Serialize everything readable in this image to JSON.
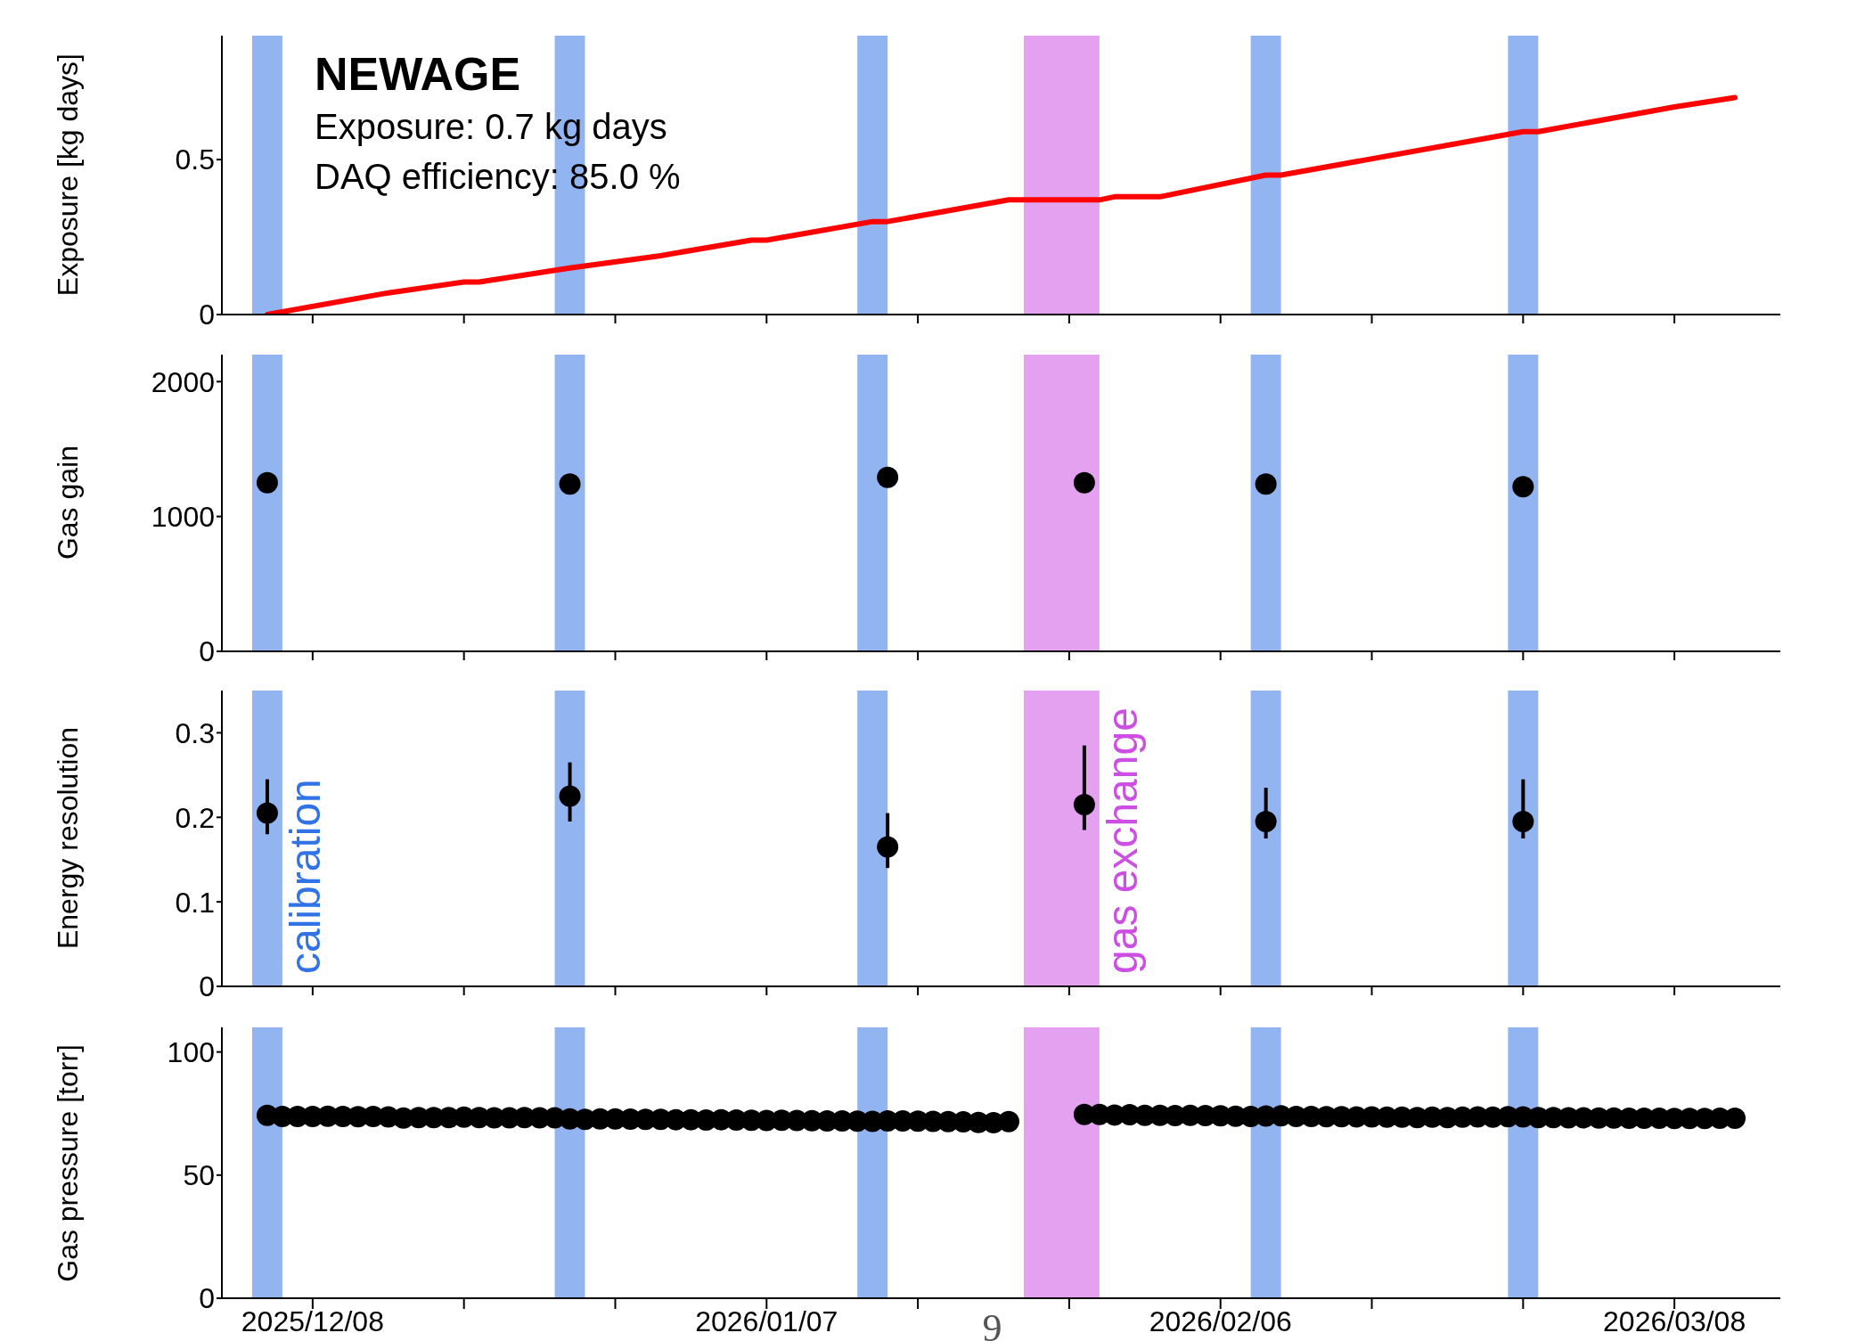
{
  "chart_data": [
    {
      "type": "line",
      "title": "NEWAGE",
      "annotations": [
        "Exposure: 0.7 kg days",
        "DAQ efficiency: 85.0 %"
      ],
      "ylabel": "Exposure [kg days]",
      "tick_labels": "y",
      "x": [
        "2025-12-05",
        "2025-12-13",
        "2025-12-18",
        "2025-12-19",
        "2025-12-25",
        "2025-12-31",
        "2026-01-06",
        "2026-01-07",
        "2026-01-14",
        "2026-01-15",
        "2026-01-23",
        "2026-01-29",
        "2026-01-30",
        "2026-02-02",
        "2026-02-09",
        "2026-02-10",
        "2026-02-26",
        "2026-02-27",
        "2026-03-08",
        "2026-03-12"
      ],
      "values": [
        0,
        0.07,
        0.105,
        0.105,
        0.15,
        0.19,
        0.24,
        0.24,
        0.3,
        0.3,
        0.37,
        0.37,
        0.38,
        0.38,
        0.45,
        0.45,
        0.59,
        0.59,
        0.67,
        0.7
      ],
      "color": "#ff0000",
      "line_style": "solid",
      "marker": "none",
      "xlim": [
        "2025-12-02",
        "2026-03-15"
      ],
      "xticks": [
        {
          "value": "2025-12-08",
          "label": null
        },
        {
          "value": "2025-12-18",
          "label": null
        },
        {
          "value": "2025-12-28",
          "label": null
        },
        {
          "value": "2026-01-07",
          "label": null
        },
        {
          "value": "2026-01-17",
          "label": null
        },
        {
          "value": "2026-01-27",
          "label": null
        },
        {
          "value": "2026-02-06",
          "label": null
        },
        {
          "value": "2026-02-16",
          "label": null
        },
        {
          "value": "2026-02-26",
          "label": null
        },
        {
          "value": "2026-03-08",
          "label": null
        }
      ],
      "ylim": [
        0,
        0.9
      ],
      "yticks": [
        0,
        0.5
      ],
      "bands": [
        {
          "axis": "x",
          "from": "2025-12-04",
          "to": "2025-12-06",
          "color": "#3173e6"
        },
        {
          "axis": "x",
          "from": "2025-12-24",
          "to": "2025-12-26",
          "color": "#3173e6"
        },
        {
          "axis": "x",
          "from": "2026-01-13",
          "to": "2026-01-15",
          "color": "#3173e6"
        },
        {
          "axis": "x",
          "from": "2026-01-24",
          "to": "2026-01-29",
          "color": "#cc4ee2"
        },
        {
          "axis": "x",
          "from": "2026-02-08",
          "to": "2026-02-10",
          "color": "#3173e6"
        },
        {
          "axis": "x",
          "from": "2026-02-25",
          "to": "2026-02-27",
          "color": "#3173e6"
        }
      ]
    },
    {
      "type": "scatter",
      "ylabel": "Gas gain",
      "tick_labels": "y",
      "marker": "circle",
      "color": "#000000",
      "x": [
        "2025-12-05",
        "2025-12-25",
        "2026-01-15",
        "2026-01-28",
        "2026-02-09",
        "2026-02-26"
      ],
      "values": [
        1250,
        1240,
        1290,
        1250,
        1240,
        1220
      ],
      "xlim": [
        "2025-12-02",
        "2026-03-15"
      ],
      "xticks": [
        {
          "value": "2025-12-08",
          "label": null
        },
        {
          "value": "2025-12-18",
          "label": null
        },
        {
          "value": "2025-12-28",
          "label": null
        },
        {
          "value": "2026-01-07",
          "label": null
        },
        {
          "value": "2026-01-17",
          "label": null
        },
        {
          "value": "2026-01-27",
          "label": null
        },
        {
          "value": "2026-02-06",
          "label": null
        },
        {
          "value": "2026-02-16",
          "label": null
        },
        {
          "value": "2026-02-26",
          "label": null
        },
        {
          "value": "2026-03-08",
          "label": null
        }
      ],
      "ylim": [
        0,
        2200
      ],
      "yticks": [
        0,
        1000,
        2000
      ],
      "bands": [
        {
          "axis": "x",
          "from": "2025-12-04",
          "to": "2025-12-06",
          "color": "#3173e6"
        },
        {
          "axis": "x",
          "from": "2025-12-24",
          "to": "2025-12-26",
          "color": "#3173e6"
        },
        {
          "axis": "x",
          "from": "2026-01-13",
          "to": "2026-01-15",
          "color": "#3173e6"
        },
        {
          "axis": "x",
          "from": "2026-01-24",
          "to": "2026-01-29",
          "color": "#cc4ee2"
        },
        {
          "axis": "x",
          "from": "2026-02-08",
          "to": "2026-02-10",
          "color": "#3173e6"
        },
        {
          "axis": "x",
          "from": "2026-02-25",
          "to": "2026-02-27",
          "color": "#3173e6"
        }
      ]
    },
    {
      "type": "scatter",
      "ylabel": "Energy resolution",
      "tick_labels": "y",
      "marker": "circle",
      "color": "#000000",
      "x": [
        "2025-12-05",
        "2025-12-25",
        "2026-01-15",
        "2026-01-28",
        "2026-02-09",
        "2026-02-26"
      ],
      "values": [
        0.205,
        0.225,
        0.165,
        0.215,
        0.195,
        0.195
      ],
      "errors": [
        [
          0.18,
          0.245
        ],
        [
          0.195,
          0.265
        ],
        [
          0.14,
          0.205
        ],
        [
          0.185,
          0.285
        ],
        [
          0.175,
          0.235
        ],
        [
          0.175,
          0.245
        ]
      ],
      "xlim": [
        "2025-12-02",
        "2026-03-15"
      ],
      "xticks": [
        {
          "value": "2025-12-08",
          "label": null
        },
        {
          "value": "2025-12-18",
          "label": null
        },
        {
          "value": "2025-12-28",
          "label": null
        },
        {
          "value": "2026-01-07",
          "label": null
        },
        {
          "value": "2026-01-17",
          "label": null
        },
        {
          "value": "2026-01-27",
          "label": null
        },
        {
          "value": "2026-02-06",
          "label": null
        },
        {
          "value": "2026-02-16",
          "label": null
        },
        {
          "value": "2026-02-26",
          "label": null
        },
        {
          "value": "2026-03-08",
          "label": null
        }
      ],
      "ylim": [
        0,
        0.35
      ],
      "yticks": [
        0,
        0.1,
        0.2,
        0.3
      ],
      "bands": [
        {
          "axis": "x",
          "from": "2025-12-04",
          "to": "2025-12-06",
          "color": "#3173e6",
          "label": "calibration"
        },
        {
          "axis": "x",
          "from": "2025-12-24",
          "to": "2025-12-26",
          "color": "#3173e6"
        },
        {
          "axis": "x",
          "from": "2026-01-13",
          "to": "2026-01-15",
          "color": "#3173e6"
        },
        {
          "axis": "x",
          "from": "2026-01-24",
          "to": "2026-01-29",
          "color": "#cc4ee2",
          "label": "gas exchange"
        },
        {
          "axis": "x",
          "from": "2026-02-08",
          "to": "2026-02-10",
          "color": "#3173e6"
        },
        {
          "axis": "x",
          "from": "2026-02-25",
          "to": "2026-02-27",
          "color": "#3173e6"
        }
      ]
    },
    {
      "type": "scatter",
      "ylabel": "Gas pressure [torr]",
      "marker": "circle",
      "color": "#000000",
      "annotations": [
        "9"
      ],
      "x": [
        "2025-12-05",
        "2025-12-06",
        "2025-12-07",
        "2025-12-08",
        "2025-12-09",
        "2025-12-10",
        "2025-12-11",
        "2025-12-12",
        "2025-12-13",
        "2025-12-14",
        "2025-12-15",
        "2025-12-16",
        "2025-12-17",
        "2025-12-18",
        "2025-12-19",
        "2025-12-20",
        "2025-12-21",
        "2025-12-22",
        "2025-12-23",
        "2025-12-24",
        "2025-12-25",
        "2025-12-26",
        "2025-12-27",
        "2025-12-28",
        "2025-12-29",
        "2025-12-30",
        "2025-12-31",
        "2026-01-01",
        "2026-01-02",
        "2026-01-03",
        "2026-01-04",
        "2026-01-05",
        "2026-01-06",
        "2026-01-07",
        "2026-01-08",
        "2026-01-09",
        "2026-01-10",
        "2026-01-11",
        "2026-01-12",
        "2026-01-13",
        "2026-01-14",
        "2026-01-15",
        "2026-01-16",
        "2026-01-17",
        "2026-01-18",
        "2026-01-19",
        "2026-01-20",
        "2026-01-21",
        "2026-01-22",
        "2026-01-23",
        "2026-01-28",
        "2026-01-29",
        "2026-01-30",
        "2026-01-31",
        "2026-02-01",
        "2026-02-02",
        "2026-02-03",
        "2026-02-04",
        "2026-02-05",
        "2026-02-06",
        "2026-02-07",
        "2026-02-08",
        "2026-02-09",
        "2026-02-10",
        "2026-02-11",
        "2026-02-12",
        "2026-02-13",
        "2026-02-14",
        "2026-02-15",
        "2026-02-16",
        "2026-02-17",
        "2026-02-18",
        "2026-02-19",
        "2026-02-20",
        "2026-02-21",
        "2026-02-22",
        "2026-02-23",
        "2026-02-24",
        "2026-02-25",
        "2026-02-26",
        "2026-02-27",
        "2026-02-28",
        "2026-03-01",
        "2026-03-02",
        "2026-03-03",
        "2026-03-04",
        "2026-03-05",
        "2026-03-06",
        "2026-03-07",
        "2026-03-08",
        "2026-03-09",
        "2026-03-10",
        "2026-03-11",
        "2026-03-12"
      ],
      "values": [
        74.3,
        73.8,
        73.8,
        73.8,
        73.9,
        73.8,
        73.7,
        73.8,
        73.6,
        73.2,
        73.4,
        73.4,
        73.4,
        73.5,
        73.4,
        73.3,
        73.3,
        73.4,
        73.3,
        73.3,
        72.8,
        72.6,
        72.8,
        72.8,
        72.7,
        72.6,
        72.6,
        72.5,
        72.5,
        72.4,
        72.5,
        72.4,
        72.3,
        72.2,
        72.3,
        72.2,
        72.1,
        72.0,
        72.0,
        71.9,
        71.8,
        72.0,
        72.0,
        71.9,
        71.8,
        71.7,
        71.6,
        71.4,
        71.3,
        71.7,
        74.6,
        74.6,
        74.4,
        74.5,
        74.3,
        74.3,
        74.2,
        74.3,
        74.2,
        74.1,
        73.9,
        73.8,
        74.0,
        74.1,
        73.8,
        73.8,
        73.7,
        73.7,
        73.6,
        73.6,
        73.5,
        73.5,
        73.4,
        73.5,
        73.4,
        73.5,
        73.6,
        73.5,
        73.7,
        73.6,
        73.4,
        73.4,
        73.3,
        73.3,
        73.2,
        73.2,
        73.1,
        73.1,
        73.1,
        73.0,
        73.0,
        73.0,
        73.1,
        73.1
      ],
      "xlim": [
        "2025-12-02",
        "2026-03-15"
      ],
      "xticks": [
        {
          "value": "2025-12-08",
          "label": "2025/12/08"
        },
        {
          "value": "2025-12-18",
          "label": null
        },
        {
          "value": "2025-12-28",
          "label": null
        },
        {
          "value": "2026-01-07",
          "label": "2026/01/07"
        },
        {
          "value": "2026-01-17",
          "label": null
        },
        {
          "value": "2026-01-27",
          "label": null
        },
        {
          "value": "2026-02-06",
          "label": "2026/02/06"
        },
        {
          "value": "2026-02-16",
          "label": null
        },
        {
          "value": "2026-02-26",
          "label": null
        },
        {
          "value": "2026-03-08",
          "label": "2026/03/08"
        }
      ],
      "ylim": [
        0,
        110
      ],
      "yticks": [
        0,
        50,
        100
      ],
      "bands": [
        {
          "axis": "x",
          "from": "2025-12-04",
          "to": "2025-12-06",
          "color": "#3173e6"
        },
        {
          "axis": "x",
          "from": "2025-12-24",
          "to": "2025-12-26",
          "color": "#3173e6"
        },
        {
          "axis": "x",
          "from": "2026-01-13",
          "to": "2026-01-15",
          "color": "#3173e6"
        },
        {
          "axis": "x",
          "from": "2026-01-24",
          "to": "2026-01-29",
          "color": "#cc4ee2"
        },
        {
          "axis": "x",
          "from": "2026-02-08",
          "to": "2026-02-10",
          "color": "#3173e6"
        },
        {
          "axis": "x",
          "from": "2026-02-25",
          "to": "2026-02-27",
          "color": "#3173e6"
        }
      ]
    }
  ]
}
